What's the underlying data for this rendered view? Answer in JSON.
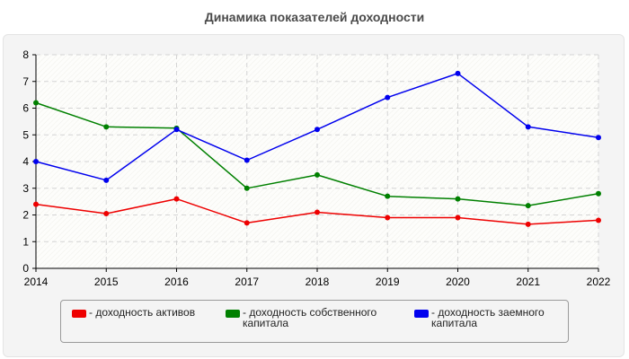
{
  "chart_data": {
    "type": "line",
    "title": "Динамика показателей доходности",
    "xlabel": "",
    "ylabel": "",
    "x": [
      "2014",
      "2015",
      "2016",
      "2017",
      "2018",
      "2019",
      "2020",
      "2021",
      "2022"
    ],
    "ylim": [
      0,
      8
    ],
    "yticks": [
      "0",
      "1",
      "2",
      "3",
      "4",
      "5",
      "6",
      "7",
      "8"
    ],
    "grid": true,
    "legend_position": "bottom",
    "series": [
      {
        "name": "- доходность активов",
        "color": "#ee0000",
        "values": [
          2.4,
          2.05,
          2.6,
          1.7,
          2.1,
          1.9,
          1.9,
          1.65,
          1.8
        ]
      },
      {
        "name": "- доходность собственного капитала",
        "color": "#008000",
        "values": [
          6.2,
          5.3,
          5.25,
          3.0,
          3.5,
          2.7,
          2.6,
          2.35,
          2.8
        ]
      },
      {
        "name": "- доходность заемного капитала",
        "color": "#0000ee",
        "values": [
          4.0,
          3.3,
          5.2,
          4.05,
          5.2,
          6.4,
          7.3,
          5.3,
          4.9
        ]
      }
    ]
  }
}
